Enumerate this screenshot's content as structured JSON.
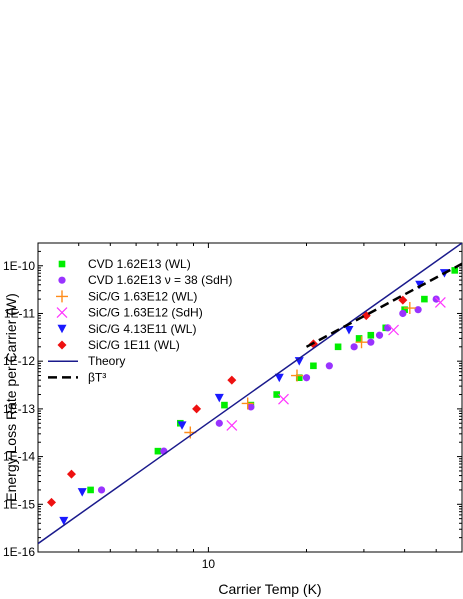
{
  "chart_data": {
    "type": "scatter",
    "xlabel": "Carrier Temp (K)",
    "ylabel": "Energy Loss Rate per Carrier (W)",
    "x_scale": "log",
    "y_scale": "log",
    "xlim": [
      3,
      60
    ],
    "ylim": [
      1e-16,
      3e-10
    ],
    "grid": false,
    "legend_position": "top-left",
    "x_ticks": [
      {
        "value": 10,
        "label": "10"
      }
    ],
    "y_ticks": [
      {
        "value": 1e-16,
        "label": "1E-16"
      },
      {
        "value": 1e-15,
        "label": "1E-15"
      },
      {
        "value": 1e-14,
        "label": "1E-14"
      },
      {
        "value": 1e-13,
        "label": "1E-13"
      },
      {
        "value": 1e-12,
        "label": "1E-12"
      },
      {
        "value": 1e-11,
        "label": "1E-11"
      },
      {
        "value": 1e-10,
        "label": "1E-10"
      }
    ],
    "series": [
      {
        "name": "CVD 1.62E13 (WL)",
        "marker": "square",
        "color": "#00ee00",
        "points": [
          [
            4.35,
            2e-15
          ],
          [
            7.0,
            1.3e-14
          ],
          [
            8.2,
            5e-14
          ],
          [
            11.2,
            1.2e-13
          ],
          [
            13.5,
            1.2e-13
          ],
          [
            16.2,
            2e-13
          ],
          [
            19.0,
            4.5e-13
          ],
          [
            21.0,
            8e-13
          ],
          [
            25.0,
            2e-12
          ],
          [
            29.0,
            3e-12
          ],
          [
            31.5,
            3.5e-12
          ],
          [
            35.0,
            5e-12
          ],
          [
            40.0,
            1.2e-11
          ],
          [
            46.0,
            2e-11
          ],
          [
            57.0,
            8e-11
          ]
        ]
      },
      {
        "name": "CVD 1.62E13 ν = 38 (SdH)",
        "marker": "circle",
        "color": "#9933ff",
        "points": [
          [
            4.7,
            2e-15
          ],
          [
            7.3,
            1.3e-14
          ],
          [
            10.8,
            5e-14
          ],
          [
            13.5,
            1.1e-13
          ],
          [
            20.0,
            4.5e-13
          ],
          [
            23.5,
            8e-13
          ],
          [
            28.0,
            2e-12
          ],
          [
            31.5,
            2.5e-12
          ],
          [
            33.5,
            3.5e-12
          ],
          [
            35.5,
            5e-12
          ],
          [
            39.5,
            1e-11
          ],
          [
            44.0,
            1.2e-11
          ],
          [
            50.0,
            2e-11
          ]
        ]
      },
      {
        "name": "SiC/G 1.63E12 (WL)",
        "marker": "plus",
        "color": "#ff8c1a",
        "points": [
          [
            8.8,
            3.2e-14
          ],
          [
            13.2,
            1.3e-13
          ],
          [
            18.7,
            5e-13
          ],
          [
            29.5,
            2.5e-12
          ],
          [
            41.5,
            1.3e-11
          ]
        ]
      },
      {
        "name": "SiC/G 1.63E12 (SdH)",
        "marker": "x",
        "color": "#ff33ff",
        "points": [
          [
            11.8,
            4.5e-14
          ],
          [
            17.0,
            1.6e-13
          ],
          [
            37.0,
            4.5e-12
          ],
          [
            51.5,
            1.7e-11
          ]
        ]
      },
      {
        "name": "SiC/G 4.13E11 (WL)",
        "marker": "triangle-down",
        "color": "#1a1aff",
        "points": [
          [
            3.6,
            4.5e-16
          ],
          [
            4.1,
            1.8e-15
          ],
          [
            8.3,
            4.5e-14
          ],
          [
            10.8,
            1.7e-13
          ],
          [
            16.5,
            4.5e-13
          ],
          [
            19.0,
            1e-12
          ],
          [
            27.0,
            4.5e-12
          ],
          [
            44.5,
            4e-11
          ],
          [
            53.0,
            7e-11
          ]
        ]
      },
      {
        "name": "SiC/G 1E11 (WL)",
        "marker": "diamond",
        "color": "#ee1111",
        "points": [
          [
            3.3,
            1.1e-15
          ],
          [
            3.8,
            4.3e-15
          ],
          [
            9.2,
            1e-13
          ],
          [
            11.8,
            4e-13
          ],
          [
            21.0,
            2.3e-12
          ],
          [
            30.5,
            9e-12
          ],
          [
            39.5,
            1.9e-11
          ]
        ]
      },
      {
        "name": "Theory",
        "line": "solid",
        "color": "#1a1a8c",
        "points": [
          [
            3.0,
            1.5e-16
          ],
          [
            60.0,
            3e-10
          ]
        ]
      },
      {
        "name": "βT³",
        "line": "dashed",
        "color": "#000000",
        "points": [
          [
            20.0,
            2e-12
          ],
          [
            60.0,
            1.1e-10
          ]
        ]
      }
    ]
  }
}
